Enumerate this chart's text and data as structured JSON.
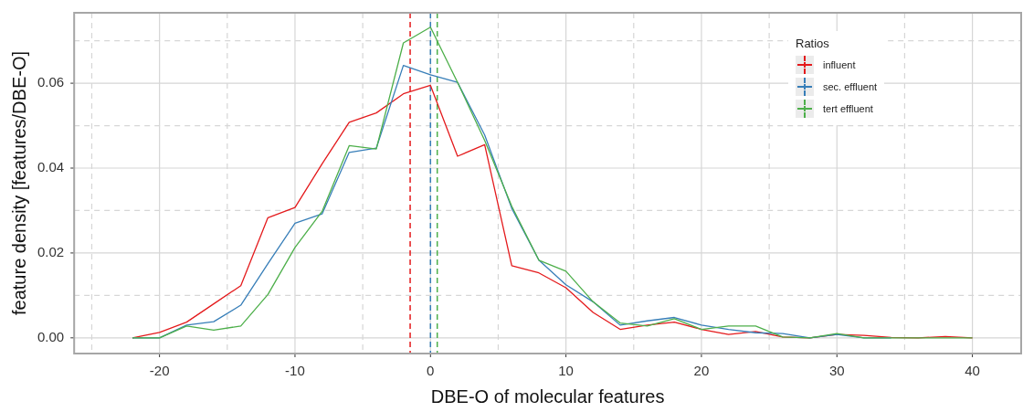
{
  "chart_data": {
    "type": "line",
    "xlabel": "DBE-O of molecular features",
    "ylabel": "feature density [features/DBE-O]",
    "legend_title": "Ratios",
    "legend": "top right",
    "grid": true,
    "x": [
      -22,
      -20,
      -18,
      -16,
      -14,
      -12,
      -10,
      -8,
      -6,
      -4,
      -2,
      0,
      2,
      4,
      6,
      8,
      10,
      12,
      14,
      16,
      18,
      20,
      22,
      24,
      26,
      28,
      30,
      32,
      34,
      36,
      38,
      40
    ],
    "xlim": [
      -26.3,
      43.6
    ],
    "xticks": [
      {
        "value": -25,
        "label": null
      },
      -20,
      {
        "value": -15,
        "label": null
      },
      -10,
      {
        "value": -5,
        "label": null
      },
      0,
      {
        "value": 5,
        "label": null
      },
      10,
      {
        "value": 15,
        "label": null
      },
      20,
      {
        "value": 25,
        "label": null
      },
      30,
      {
        "value": 35,
        "label": null
      },
      40
    ],
    "ylim": [
      -0.0037,
      0.0766
    ],
    "yticks": [
      {
        "value": 0,
        "label": "0.00"
      },
      {
        "value": 0.01,
        "label": null
      },
      {
        "value": 0.02,
        "label": "0.02"
      },
      {
        "value": 0.03,
        "label": null
      },
      {
        "value": 0.04,
        "label": "0.04"
      },
      {
        "value": 0.05,
        "label": null
      },
      {
        "value": 0.06,
        "label": "0.06"
      },
      {
        "value": 0.07,
        "label": null
      }
    ],
    "line_style": "solid",
    "marker": "none",
    "series": [
      {
        "name": "influent",
        "color": "#e41a1c",
        "values": [
          0,
          0.0013,
          0.0037,
          0.008,
          0.0123,
          0.0283,
          0.0307,
          0.041,
          0.0508,
          0.053,
          0.0575,
          0.0595,
          0.0428,
          0.0455,
          0.017,
          0.0153,
          0.0118,
          0.006,
          0.002,
          0.003,
          0.0037,
          0.002,
          0.0008,
          0.0015,
          0.0002,
          0,
          0.0008,
          0.0006,
          0.0001,
          0,
          0.0003,
          0
        ]
      },
      {
        "name": "sec. effluent",
        "color": "#377eb8",
        "values": [
          0,
          0,
          0.003,
          0.0038,
          0.0077,
          0.0175,
          0.027,
          0.0292,
          0.0437,
          0.0447,
          0.0642,
          0.062,
          0.0602,
          0.0478,
          0.0305,
          0.0183,
          0.0125,
          0.0085,
          0.003,
          0.004,
          0.0048,
          0.003,
          0.002,
          0.0012,
          0.001,
          0,
          0.0008,
          0,
          0,
          null,
          null,
          null
        ]
      },
      {
        "name": "tert effluent",
        "color": "#4daf4a",
        "values": [
          0,
          0,
          0.0028,
          0.0018,
          0.0028,
          0.0102,
          0.0213,
          0.0298,
          0.0453,
          0.0445,
          0.0695,
          0.0732,
          0.0602,
          0.0465,
          0.031,
          0.0183,
          0.0157,
          0.0085,
          0.0035,
          0.0028,
          0.0045,
          0.002,
          0.0028,
          0.0028,
          0.0002,
          0,
          0.001,
          0,
          0,
          0,
          0,
          0
        ]
      }
    ],
    "ref_lines": [
      {
        "axis": "x",
        "value": -1.5,
        "color": "#e41a1c",
        "line_style": "dashed"
      },
      {
        "axis": "x",
        "value": 0,
        "color": "#377eb8",
        "line_style": "dashed"
      },
      {
        "axis": "x",
        "value": 0.5,
        "color": "#4daf4a",
        "line_style": "dashed"
      }
    ]
  }
}
